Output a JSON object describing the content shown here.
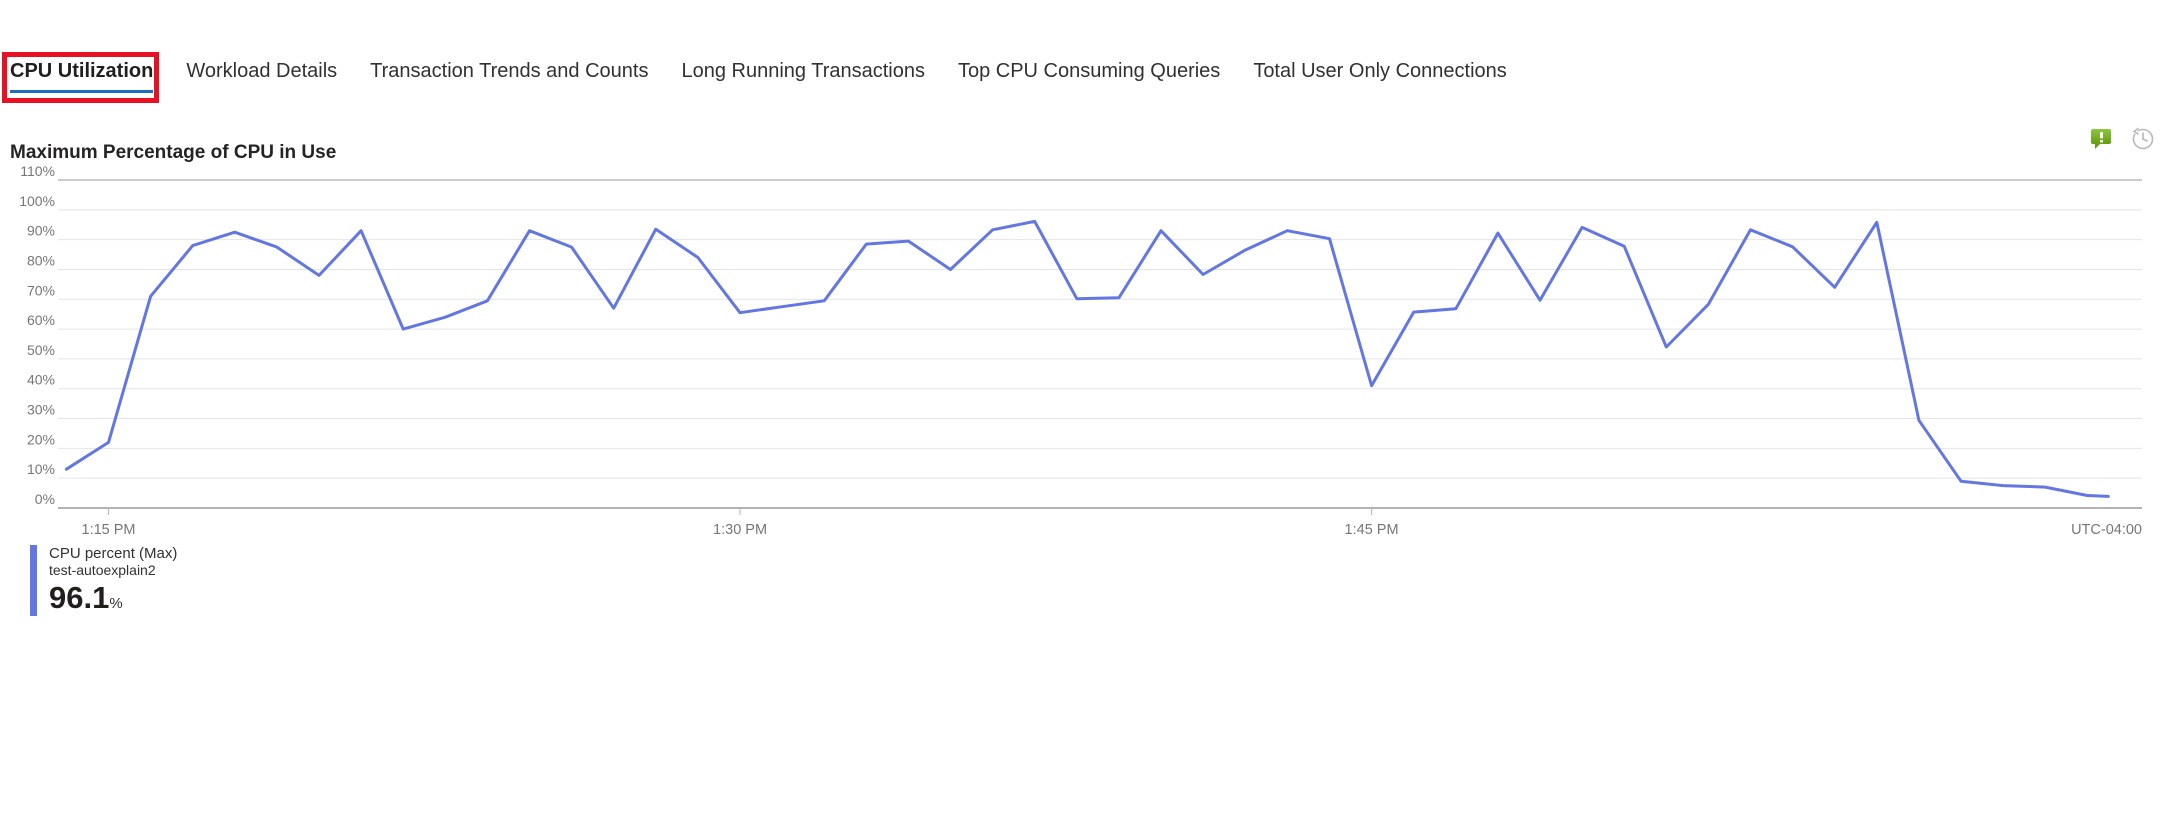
{
  "tabs": {
    "items": [
      {
        "label": "CPU Utilization",
        "active": true,
        "annotated": true
      },
      {
        "label": "Workload Details",
        "active": false
      },
      {
        "label": "Transaction Trends and Counts",
        "active": false
      },
      {
        "label": "Long Running Transactions",
        "active": false
      },
      {
        "label": "Top CPU Consuming Queries",
        "active": false
      },
      {
        "label": "Total User Only Connections",
        "active": false
      }
    ],
    "active_underline_color": "#1a6fbf",
    "annotation_color": "#e81123"
  },
  "section": {
    "title": "Maximum Percentage of CPU in Use",
    "icons": [
      {
        "name": "feedback-exclamation-icon",
        "color": "#74b21c",
        "glyph": "!"
      },
      {
        "name": "history-clock-icon",
        "color": "#b8b8b8"
      }
    ]
  },
  "legend": {
    "series_label": "CPU percent (Max)",
    "resource_label": "test-autoexplain2",
    "value": "96.1",
    "unit": "%"
  },
  "chart_data": {
    "type": "line",
    "title": "Maximum Percentage of CPU in Use",
    "grid": true,
    "legend_position": "bottom-left",
    "line_color": "#6377e2",
    "y_axis": {
      "min": 0,
      "max": 110,
      "step": 10,
      "unit": "%"
    },
    "x_axis": {
      "tick_labels": [
        "1:15 PM",
        "1:30 PM",
        "1:45 PM"
      ],
      "tick_minutes": [
        1,
        16,
        31
      ],
      "timezone_label": "UTC-04:00",
      "min_minutes": -0.2,
      "max_minutes": 49.3
    },
    "series": [
      {
        "name": "CPU percent (Max)",
        "resource": "test-autoexplain2",
        "color": "#6377e2",
        "max_value": 96.1,
        "unit": "%",
        "x_minutes": [
          0,
          1,
          2,
          3,
          4,
          5,
          6,
          7,
          8,
          9,
          10,
          11,
          12,
          13,
          14,
          15,
          16,
          17,
          18,
          19,
          20,
          21,
          22,
          23,
          24,
          25,
          26,
          27,
          28,
          29,
          30,
          31,
          32,
          33,
          34,
          35,
          36,
          37,
          38,
          39,
          40,
          41,
          42,
          43,
          44,
          45,
          46,
          47,
          48,
          48.5
        ],
        "values": [
          13,
          22,
          71,
          88,
          92.5,
          87.5,
          78,
          93,
          60,
          64,
          69.5,
          93,
          87.5,
          67,
          93.5,
          84,
          65.5,
          67.5,
          69.5,
          88.5,
          89.5,
          80,
          93.3,
          96.1,
          70.2,
          70.5,
          93,
          78.3,
          86.5,
          93,
          90.3,
          41,
          65.7,
          66.8,
          92.2,
          69.7,
          94.1,
          87.8,
          54,
          68.3,
          93.3,
          87.6,
          74,
          95.8,
          29.4,
          9,
          7.5,
          7,
          4.2,
          3.9
        ]
      }
    ]
  }
}
